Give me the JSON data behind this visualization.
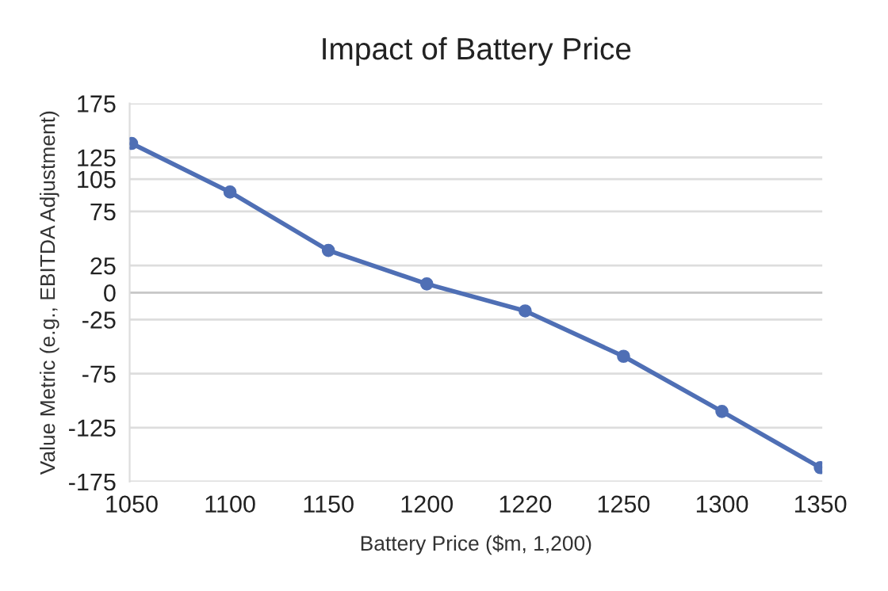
{
  "chart_data": {
    "type": "line",
    "title": "Impact of Battery Price",
    "xlabel": "Battery Price ($m, 1,200)",
    "ylabel": "Value Metric (e.g., EBITDA Adjustment)",
    "categories": [
      "1050",
      "1100",
      "1150",
      "1200",
      "1220",
      "1250",
      "1300",
      "1350"
    ],
    "series": [
      {
        "color": "#4f6fb5",
        "values": [
          138,
          93,
          39,
          8,
          -17,
          -59,
          -110,
          -162
        ]
      }
    ],
    "ylim": [
      -175,
      175
    ],
    "yticks": [
      175,
      125,
      105,
      75,
      25,
      0,
      -25,
      -75,
      -125,
      -175
    ],
    "grid": "y",
    "marker": "circle",
    "line_style": "solid",
    "legend": false
  }
}
